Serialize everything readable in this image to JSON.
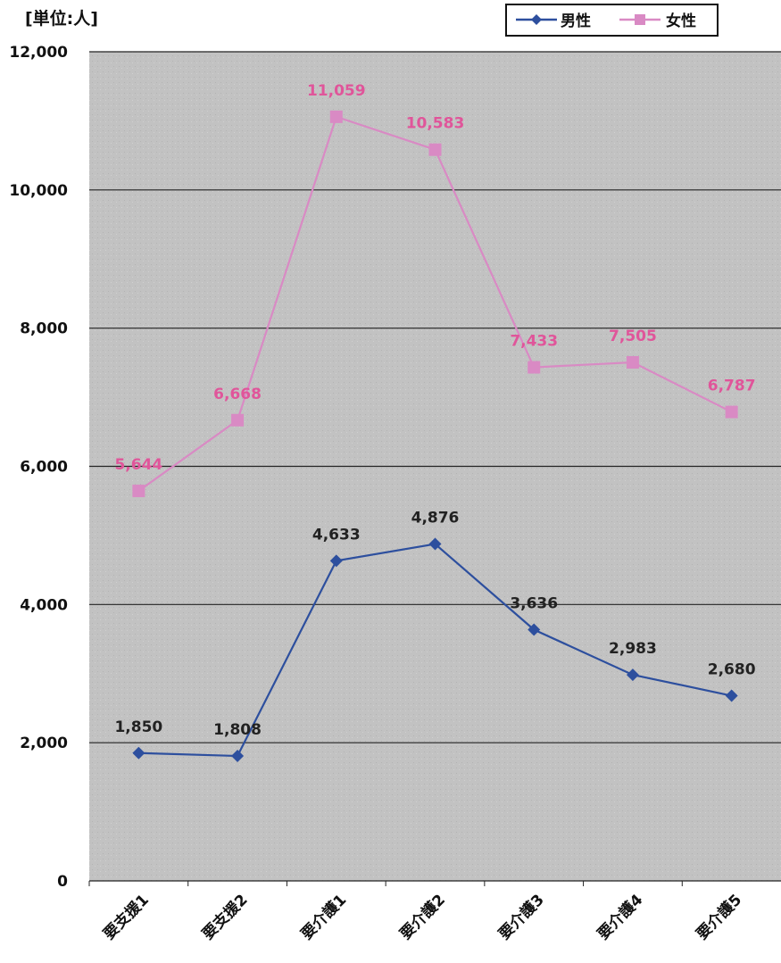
{
  "chart_data": {
    "type": "line",
    "unit_label": "[単位:人]",
    "categories": [
      "要支援1",
      "要支援2",
      "要介護1",
      "要介護2",
      "要介護3",
      "要介護4",
      "要介護5"
    ],
    "ylim": [
      0,
      12000
    ],
    "yticks": [
      0,
      2000,
      4000,
      6000,
      8000,
      10000,
      12000
    ],
    "ytick_labels": [
      "0",
      "2,000",
      "4,000",
      "6,000",
      "8,000",
      "10,000",
      "12,000"
    ],
    "grid": true,
    "legend_position": "top-right",
    "series": [
      {
        "name": "男性",
        "color": "#2d4f9e",
        "marker": "diamond",
        "values": [
          1850,
          1808,
          4633,
          4876,
          3636,
          2983,
          2680
        ],
        "labels": [
          "1,850",
          "1,808",
          "4,633",
          "4,876",
          "3,636",
          "2,983",
          "2,680"
        ]
      },
      {
        "name": "女性",
        "color": "#d98ac4",
        "label_color": "#e0559a",
        "marker": "square",
        "values": [
          5644,
          6668,
          11059,
          10583,
          7433,
          7505,
          6787
        ],
        "labels": [
          "5,644",
          "6,668",
          "11,059",
          "10,583",
          "7,433",
          "7,505",
          "6,787"
        ]
      }
    ]
  }
}
